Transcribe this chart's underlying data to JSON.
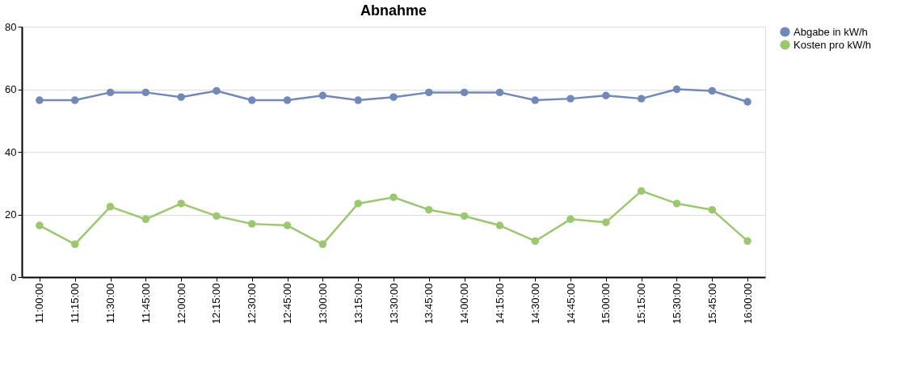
{
  "chart_data": {
    "type": "line",
    "title": "Abnahme",
    "categories": [
      "11:00:00",
      "11:15:00",
      "11:30:00",
      "11:45:00",
      "12:00:00",
      "12:15:00",
      "12:30:00",
      "12:45:00",
      "13:00:00",
      "13:15:00",
      "13:30:00",
      "13:45:00",
      "14:00:00",
      "14:15:00",
      "14:30:00",
      "14:45:00",
      "15:00:00",
      "15:15:00",
      "15:30:00",
      "15:45:00",
      "16:00:00"
    ],
    "series": [
      {
        "name": "Abgabe in kW/h",
        "color": "#7189b9",
        "values": [
          56.5,
          56.5,
          59,
          59,
          57.5,
          59.5,
          56.5,
          56.5,
          58,
          56.5,
          57.5,
          59,
          59,
          59,
          56.5,
          57,
          58,
          57,
          60,
          59.5,
          56
        ]
      },
      {
        "name": "Kosten pro kW/h",
        "color": "#9bc86e",
        "values": [
          16.5,
          10.5,
          22.5,
          18.5,
          23.5,
          19.5,
          17,
          16.5,
          10.5,
          23.5,
          25.5,
          21.5,
          19.5,
          16.5,
          11.5,
          18.5,
          17.5,
          27.5,
          23.5,
          21.5,
          11.5
        ]
      }
    ],
    "ylim": [
      0,
      80
    ],
    "yticks": [
      0,
      20,
      40,
      60,
      80
    ],
    "grid": "y",
    "legend": "top right",
    "marker": "circle",
    "line_style": "solid"
  }
}
